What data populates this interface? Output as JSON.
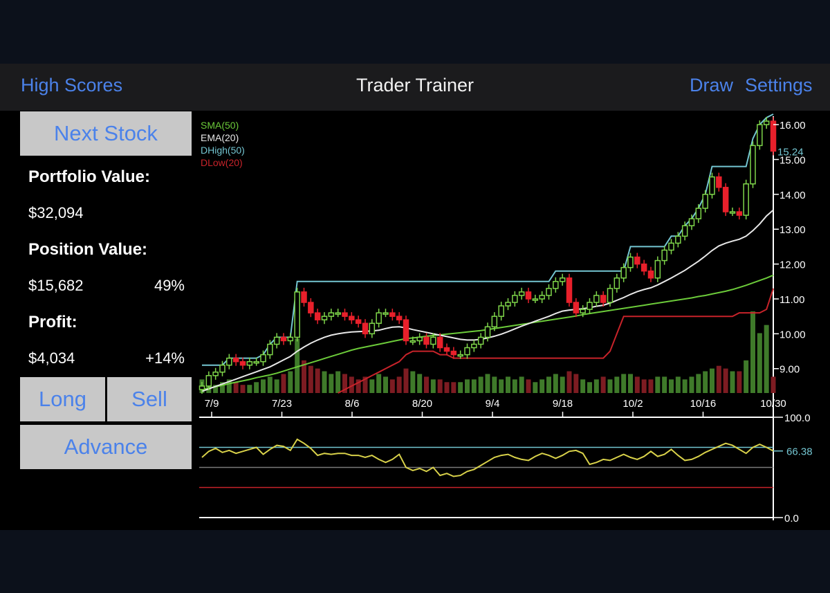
{
  "header": {
    "left_label": "High Scores",
    "title": "Trader Trainer",
    "draw_label": "Draw",
    "settings_label": "Settings"
  },
  "sidebar": {
    "next_stock_label": "Next Stock",
    "portfolio_label": "Portfolio Value:",
    "portfolio_value": "$32,094",
    "position_label": "Position Value:",
    "position_value": "$15,682",
    "position_pct": "49%",
    "profit_label": "Profit:",
    "profit_value": "$4,034",
    "profit_pct": "+14%",
    "long_label": "Long",
    "sell_label": "Sell",
    "advance_label": "Advance"
  },
  "colors": {
    "accent": "#4b82ea",
    "up": "#7fd64a",
    "down": "#e8202b",
    "sma": "#6ccb3a",
    "ema": "#e8e8e8",
    "dhigh": "#74c6d2",
    "dlow": "#c8232a",
    "indicator": "#d9d24a"
  },
  "chart_data": [
    {
      "type": "candlestick",
      "legend": [
        {
          "name": "SMA(50)",
          "color": "#6ccb3a"
        },
        {
          "name": "EMA(20)",
          "color": "#e8e8e8"
        },
        {
          "name": "DHigh(50)",
          "color": "#74c6d2"
        },
        {
          "name": "DLow(20)",
          "color": "#c8232a"
        }
      ],
      "legend_position": "top-left",
      "x_ticks": [
        "7/9",
        "7/23",
        "8/6",
        "8/20",
        "9/4",
        "9/18",
        "10/2",
        "10/16",
        "10/30"
      ],
      "y_ticks": [
        "9.00",
        "10.00",
        "11.00",
        "12.00",
        "13.00",
        "14.00",
        "15.00",
        "16.00"
      ],
      "ylim": [
        8.3,
        16.3
      ],
      "last_price_label": "15.24",
      "last_price": 15.24,
      "closes": [
        8.5,
        8.8,
        8.9,
        9.1,
        9.3,
        9.2,
        9.1,
        9.2,
        9.2,
        9.4,
        9.7,
        9.9,
        9.8,
        9.9,
        11.2,
        10.9,
        10.6,
        10.4,
        10.5,
        10.6,
        10.6,
        10.5,
        10.4,
        10.3,
        10.0,
        10.3,
        10.6,
        10.6,
        10.5,
        10.4,
        9.8,
        9.8,
        9.9,
        9.7,
        9.9,
        9.6,
        9.5,
        9.4,
        9.4,
        9.6,
        9.7,
        9.9,
        10.2,
        10.5,
        10.8,
        10.9,
        11.1,
        11.2,
        11.0,
        11.0,
        11.1,
        11.3,
        11.5,
        11.6,
        10.9,
        10.6,
        10.7,
        10.9,
        11.1,
        10.9,
        11.3,
        11.6,
        11.9,
        12.2,
        12.0,
        11.8,
        11.6,
        12.1,
        12.4,
        12.6,
        12.8,
        13.1,
        13.3,
        13.6,
        14.0,
        14.5,
        14.2,
        13.5,
        13.5,
        13.4,
        14.3,
        15.4,
        16.0,
        16.1,
        15.24
      ],
      "sma50": [
        8.4,
        8.44,
        8.48,
        8.52,
        8.57,
        8.61,
        8.65,
        8.69,
        8.74,
        8.78,
        8.82,
        8.87,
        8.93,
        8.99,
        9.05,
        9.11,
        9.17,
        9.23,
        9.29,
        9.35,
        9.41,
        9.47,
        9.53,
        9.58,
        9.62,
        9.66,
        9.7,
        9.74,
        9.78,
        9.82,
        9.86,
        9.88,
        9.9,
        9.93,
        9.95,
        9.97,
        9.99,
        10.01,
        10.03,
        10.05,
        10.07,
        10.09,
        10.12,
        10.15,
        10.18,
        10.21,
        10.24,
        10.27,
        10.3,
        10.33,
        10.36,
        10.39,
        10.42,
        10.45,
        10.48,
        10.51,
        10.55,
        10.58,
        10.61,
        10.64,
        10.67,
        10.7,
        10.73,
        10.76,
        10.79,
        10.82,
        10.85,
        10.88,
        10.91,
        10.94,
        10.97,
        11.0,
        11.03,
        11.07,
        11.1,
        11.14,
        11.18,
        11.22,
        11.27,
        11.33,
        11.39,
        11.46,
        11.53,
        11.6,
        11.68
      ],
      "ema20": [
        8.35,
        8.42,
        8.49,
        8.56,
        8.63,
        8.7,
        8.77,
        8.84,
        8.91,
        8.98,
        9.05,
        9.15,
        9.25,
        9.35,
        9.5,
        9.62,
        9.73,
        9.82,
        9.9,
        9.96,
        10.0,
        10.03,
        10.05,
        10.06,
        10.07,
        10.08,
        10.1,
        10.15,
        10.19,
        10.2,
        10.17,
        10.12,
        10.08,
        10.04,
        10.0,
        9.96,
        9.92,
        9.88,
        9.84,
        9.82,
        9.82,
        9.84,
        9.88,
        9.93,
        9.99,
        10.06,
        10.14,
        10.22,
        10.29,
        10.36,
        10.43,
        10.5,
        10.58,
        10.65,
        10.68,
        10.7,
        10.72,
        10.75,
        10.79,
        10.82,
        10.88,
        10.96,
        11.04,
        11.13,
        11.21,
        11.27,
        11.32,
        11.4,
        11.5,
        11.6,
        11.71,
        11.82,
        11.95,
        12.08,
        12.23,
        12.39,
        12.52,
        12.6,
        12.66,
        12.71,
        12.8,
        12.96,
        13.15,
        13.38,
        13.55
      ],
      "dhigh50": [
        9.1,
        9.1,
        9.1,
        9.1,
        9.3,
        9.3,
        9.3,
        9.3,
        9.3,
        9.4,
        9.7,
        9.9,
        9.9,
        9.9,
        11.5,
        11.5,
        11.5,
        11.5,
        11.5,
        11.5,
        11.5,
        11.5,
        11.5,
        11.5,
        11.5,
        11.5,
        11.5,
        11.5,
        11.5,
        11.5,
        11.5,
        11.5,
        11.5,
        11.5,
        11.5,
        11.5,
        11.5,
        11.5,
        11.5,
        11.5,
        11.5,
        11.5,
        11.5,
        11.5,
        11.5,
        11.5,
        11.5,
        11.5,
        11.5,
        11.5,
        11.5,
        11.5,
        11.8,
        11.8,
        11.8,
        11.8,
        11.8,
        11.8,
        11.8,
        11.8,
        11.8,
        11.8,
        11.8,
        12.5,
        12.5,
        12.5,
        12.5,
        12.5,
        12.5,
        12.8,
        12.8,
        13.1,
        13.3,
        13.6,
        14.0,
        14.8,
        14.8,
        14.8,
        14.8,
        14.8,
        14.8,
        15.6,
        16.0,
        16.2,
        16.3
      ],
      "dlow20": [
        null,
        null,
        null,
        null,
        null,
        null,
        null,
        null,
        null,
        null,
        null,
        null,
        null,
        null,
        null,
        null,
        null,
        null,
        null,
        null,
        8.3,
        8.4,
        8.5,
        8.6,
        8.7,
        8.8,
        8.9,
        9.0,
        9.1,
        9.2,
        9.4,
        9.5,
        9.5,
        9.5,
        9.5,
        9.4,
        9.4,
        9.3,
        9.3,
        9.3,
        9.3,
        9.3,
        9.3,
        9.3,
        9.3,
        9.3,
        9.3,
        9.3,
        9.3,
        9.3,
        9.3,
        9.3,
        9.3,
        9.3,
        9.3,
        9.3,
        9.3,
        9.3,
        9.3,
        9.3,
        9.5,
        10.0,
        10.5,
        10.5,
        10.5,
        10.5,
        10.5,
        10.5,
        10.5,
        10.5,
        10.5,
        10.5,
        10.5,
        10.5,
        10.5,
        10.5,
        10.5,
        10.5,
        10.5,
        10.6,
        10.6,
        10.6,
        10.6,
        10.7,
        11.3
      ],
      "volume": [
        5,
        4,
        3,
        4,
        5,
        4,
        3,
        3,
        4,
        5,
        6,
        5,
        7,
        8,
        20,
        12,
        10,
        9,
        8,
        7,
        8,
        7,
        6,
        5,
        6,
        5,
        7,
        6,
        5,
        6,
        9,
        8,
        7,
        6,
        5,
        5,
        4,
        4,
        4,
        5,
        5,
        6,
        7,
        6,
        5,
        6,
        5,
        6,
        5,
        4,
        5,
        6,
        7,
        6,
        8,
        7,
        5,
        4,
        5,
        6,
        5,
        6,
        7,
        7,
        6,
        5,
        5,
        6,
        6,
        5,
        6,
        5,
        6,
        7,
        8,
        9,
        10,
        9,
        8,
        8,
        12,
        30,
        22,
        25,
        6
      ]
    },
    {
      "type": "line",
      "y_ticks": [
        "100.0",
        "0.0"
      ],
      "ylim": [
        0,
        100
      ],
      "last_value_label": "66.38",
      "last_value": 66.38,
      "levels": [
        70,
        50,
        30
      ],
      "values": [
        60,
        66,
        69,
        65,
        67,
        64,
        66,
        68,
        70,
        63,
        68,
        72,
        71,
        67,
        78,
        74,
        69,
        62,
        64,
        63,
        64,
        64,
        62,
        62,
        60,
        62,
        58,
        55,
        58,
        63,
        50,
        47,
        49,
        46,
        50,
        42,
        44,
        41,
        42,
        46,
        48,
        52,
        56,
        60,
        62,
        63,
        60,
        58,
        57,
        61,
        64,
        62,
        59,
        62,
        66,
        67,
        64,
        53,
        55,
        58,
        57,
        60,
        63,
        60,
        58,
        61,
        66,
        61,
        63,
        68,
        62,
        57,
        58,
        61,
        65,
        68,
        71,
        74,
        72,
        68,
        64,
        70,
        73,
        70,
        66.38
      ]
    }
  ]
}
